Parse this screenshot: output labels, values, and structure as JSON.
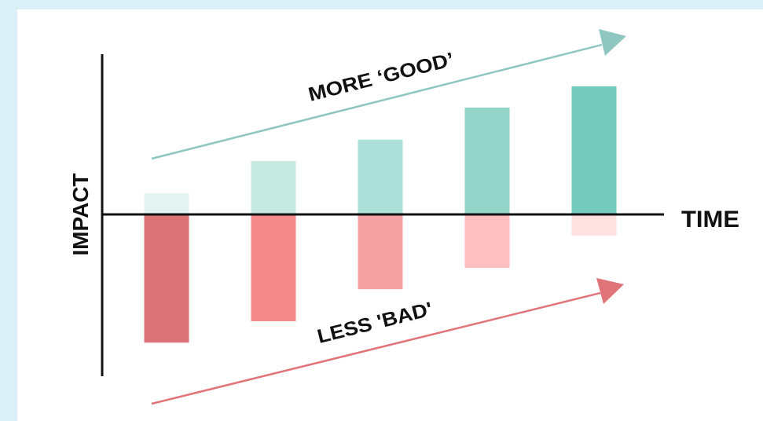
{
  "chart_data": {
    "type": "bar",
    "xlabel": "TIME",
    "ylabel": "IMPACT",
    "categories": [
      "",
      "",
      "",
      "",
      ""
    ],
    "series": [
      {
        "values": [
          2,
          5,
          7,
          10,
          12
        ],
        "colors": [
          "#e3f4f0",
          "#c6e9e2",
          "#abdfd7",
          "#93d4c8",
          "#73cabd"
        ]
      },
      {
        "values": [
          -12,
          -10,
          -7,
          -5,
          -2
        ],
        "colors": [
          "#dc7376",
          "#f58a8b",
          "#f5a0a3",
          "#ffbfc1",
          "#ffe1e2"
        ]
      }
    ],
    "ylim": [
      -15,
      15
    ],
    "annotations": [
      {
        "text": "MORE ‘GOOD’",
        "color": "#8fc7c0"
      },
      {
        "text": "LESS 'BAD'",
        "color": "#e07479"
      }
    ]
  }
}
